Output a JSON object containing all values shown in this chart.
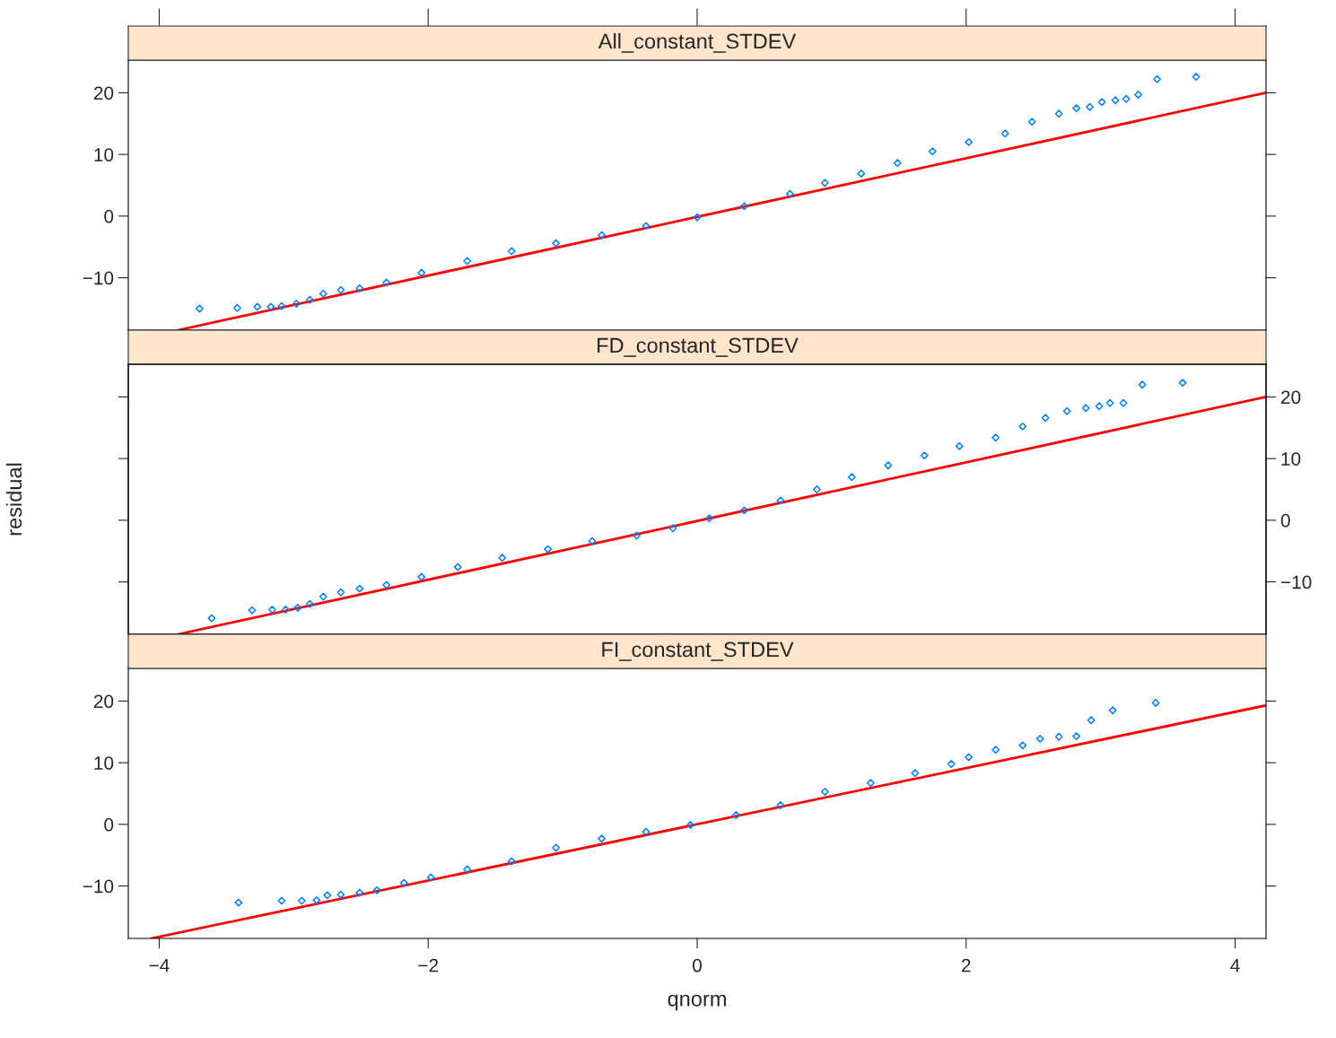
{
  "chart_data": [
    {
      "type": "scatter",
      "title": "All_constant_STDEV",
      "xlim": [
        -4.23,
        4.23
      ],
      "xticks": [
        -4,
        -2,
        0,
        2,
        4
      ],
      "ylim": [
        -18.5,
        25.3
      ],
      "yticks": [
        {
          "value": -10,
          "label": "−10"
        },
        0,
        10,
        20
      ],
      "tick_labels": "y",
      "grid": false,
      "series": [
        {
          "marker": "diamond",
          "color": "#0080ff",
          "x": [
            -3.7,
            -3.42,
            -3.27,
            -3.17,
            -3.09,
            -2.98,
            -2.88,
            -2.78,
            -2.65,
            -2.51,
            -2.31,
            -2.05,
            -1.71,
            -1.38,
            -1.05,
            -0.71,
            -0.38,
            0.0,
            0.35,
            0.69,
            0.95,
            1.22,
            1.49,
            1.75,
            2.02,
            2.29,
            2.49,
            2.69,
            2.82,
            2.92,
            3.01,
            3.11,
            3.19,
            3.28,
            3.42,
            3.71
          ],
          "values": [
            -15.0,
            -14.9,
            -14.7,
            -14.7,
            -14.6,
            -14.2,
            -13.6,
            -12.6,
            -12.0,
            -11.7,
            -10.8,
            -9.2,
            -7.3,
            -5.7,
            -4.4,
            -3.1,
            -1.6,
            -0.2,
            1.6,
            3.6,
            5.4,
            6.9,
            8.6,
            10.5,
            12.0,
            13.4,
            15.3,
            16.6,
            17.5,
            17.7,
            18.5,
            18.8,
            19.0,
            19.7,
            22.2,
            22.6
          ]
        },
        {
          "type": "line",
          "color": "#ff0000",
          "x": [
            -3.86,
            4.23
          ],
          "values": [
            -18.5,
            20.0
          ]
        }
      ]
    },
    {
      "type": "scatter",
      "title": "FD_constant_STDEV",
      "xlim": [
        -4.23,
        4.23
      ],
      "y2lim": [
        -18.5,
        25.3
      ],
      "y2ticks": [
        {
          "value": -10,
          "label": "−10"
        },
        0,
        10,
        20
      ],
      "tick_labels": "y2",
      "ylabel": "residual",
      "grid": false,
      "series": [
        {
          "marker": "diamond",
          "axis": "y2",
          "color": "#0080ff",
          "x": [
            -3.61,
            -3.31,
            -3.16,
            -3.06,
            -2.97,
            -2.88,
            -2.78,
            -2.65,
            -2.51,
            -2.31,
            -2.05,
            -1.78,
            -1.45,
            -1.11,
            -0.78,
            -0.45,
            -0.18,
            0.09,
            0.35,
            0.62,
            0.89,
            1.15,
            1.42,
            1.69,
            1.95,
            2.22,
            2.42,
            2.59,
            2.75,
            2.89,
            2.99,
            3.07,
            3.17,
            3.31,
            3.61
          ],
          "values": [
            -15.9,
            -14.6,
            -14.5,
            -14.5,
            -14.2,
            -13.6,
            -12.4,
            -11.7,
            -11.1,
            -10.5,
            -9.2,
            -7.6,
            -6.1,
            -4.7,
            -3.4,
            -2.5,
            -1.3,
            0.3,
            1.6,
            3.2,
            5.0,
            7.0,
            8.9,
            10.5,
            12.0,
            13.4,
            15.2,
            16.6,
            17.7,
            18.2,
            18.5,
            19.0,
            19.0,
            22.0,
            22.3
          ]
        },
        {
          "axis": "y2",
          "type": "line",
          "color": "#ff0000",
          "x": [
            -3.86,
            4.23
          ],
          "values": [
            -18.5,
            20.0
          ]
        }
      ]
    },
    {
      "type": "scatter",
      "title": "FI_constant_STDEV",
      "xlabel": "qnorm",
      "xlim": [
        -4.23,
        4.23
      ],
      "xticks": [
        {
          "value": -4,
          "label": "−4"
        },
        {
          "value": -2,
          "label": "−2"
        },
        0,
        2,
        4
      ],
      "ylim": [
        -18.5,
        25.3
      ],
      "yticks": [
        {
          "value": -10,
          "label": "−10"
        },
        0,
        10,
        20
      ],
      "grid": false,
      "series": [
        {
          "marker": "diamond",
          "color": "#0080ff",
          "x": [
            -3.41,
            -3.09,
            -2.94,
            -2.83,
            -2.75,
            -2.65,
            -2.51,
            -2.38,
            -2.18,
            -1.98,
            -1.71,
            -1.38,
            -1.05,
            -0.71,
            -0.38,
            -0.05,
            0.29,
            0.62,
            0.95,
            1.29,
            1.62,
            1.89,
            2.02,
            2.22,
            2.42,
            2.55,
            2.69,
            2.82,
            2.93,
            3.09,
            3.41
          ],
          "values": [
            -12.7,
            -12.4,
            -12.4,
            -12.3,
            -11.5,
            -11.4,
            -11.1,
            -10.7,
            -9.5,
            -8.6,
            -7.3,
            -6.0,
            -3.8,
            -2.3,
            -1.2,
            -0.1,
            1.5,
            3.1,
            5.3,
            6.7,
            8.3,
            9.8,
            10.9,
            12.1,
            12.8,
            13.9,
            14.2,
            14.3,
            16.9,
            18.5,
            19.7
          ]
        },
        {
          "type": "line",
          "color": "#ff0000",
          "x": [
            -4.06,
            4.23
          ],
          "values": [
            -18.5,
            19.3
          ]
        }
      ]
    }
  ]
}
